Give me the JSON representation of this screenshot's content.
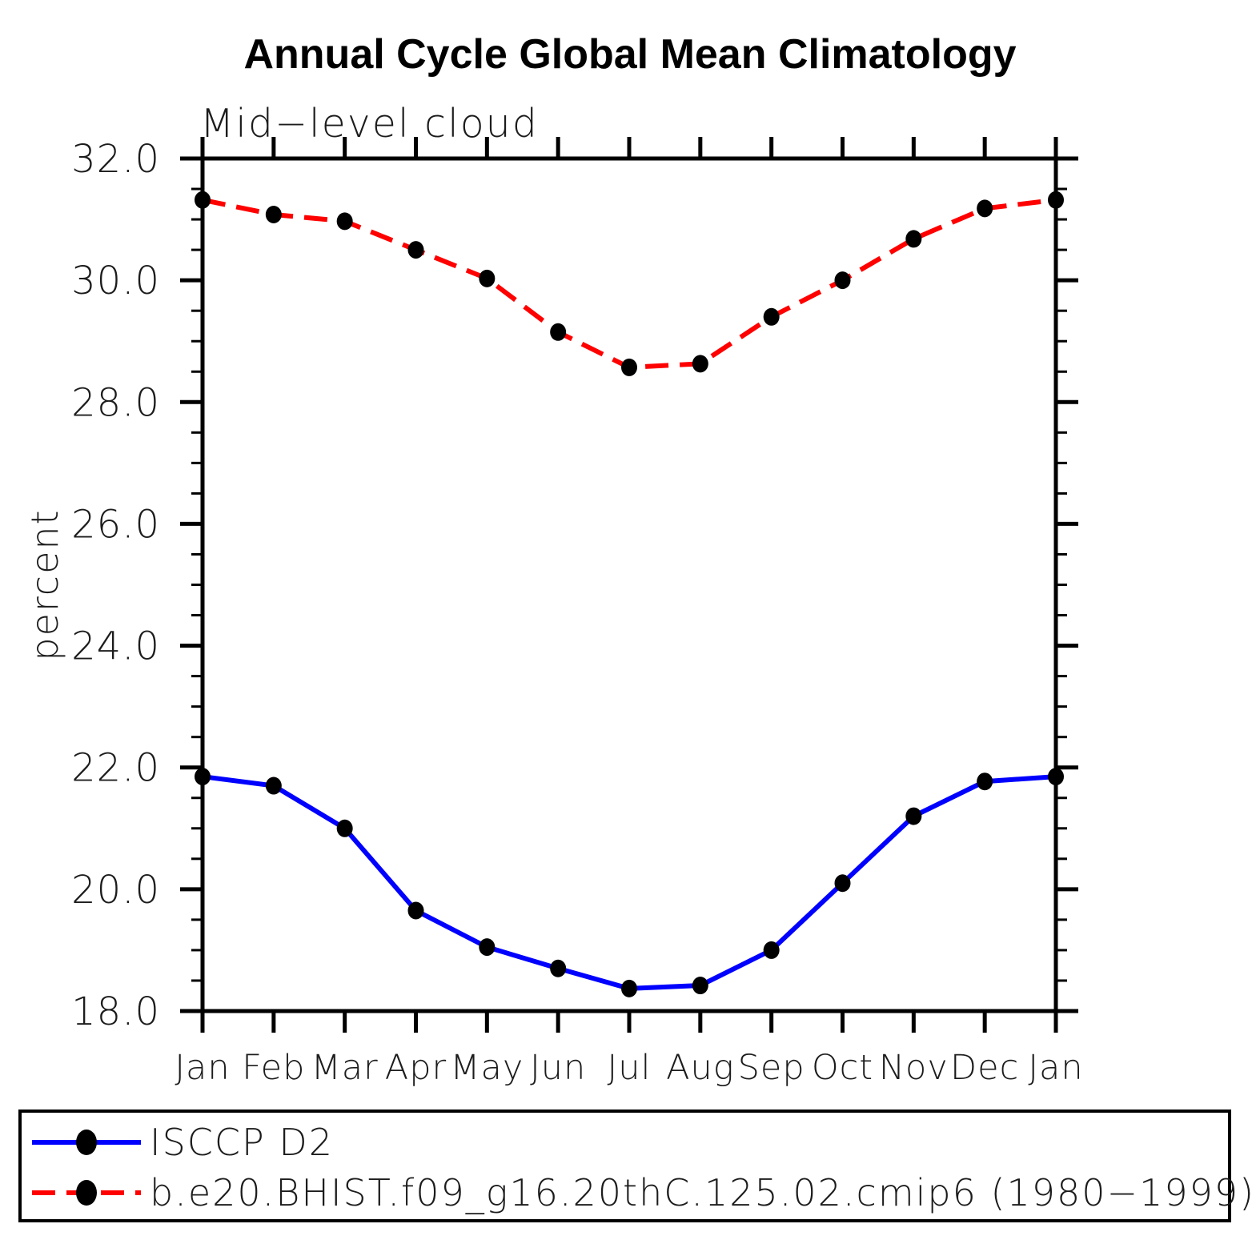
{
  "title": "Annual Cycle Global Mean Climatology",
  "subtitle": "Mid−level cloud",
  "y_axis": {
    "label": "percent",
    "tick_labels": [
      "18.0",
      "20.0",
      "22.0",
      "24.0",
      "26.0",
      "28.0",
      "30.0",
      "32.0"
    ]
  },
  "x_axis": {
    "tick_labels": [
      "Jan",
      "Feb",
      "Mar",
      "Apr",
      "May",
      "Jun",
      "Jul",
      "Aug",
      "Sep",
      "Oct",
      "Nov",
      "Dec",
      "Jan"
    ]
  },
  "legend": {
    "entries": [
      {
        "label": "ISCCP D2",
        "line": "solid blue",
        "marker": "black filled circle"
      },
      {
        "label": "b.e20.BHIST.f09_g16.20thC.125.02.cmip6 (1980−1999)",
        "line": "dashed red",
        "marker": "black filled circle"
      }
    ]
  },
  "colors": {
    "background": "#ffffff",
    "axis": "#000000",
    "text": "#1c1c1c",
    "series_blue": "#0000ff",
    "series_red": "#ff0000",
    "marker": "#000000"
  },
  "chart_data": {
    "type": "line",
    "title": "Annual Cycle Global Mean Climatology",
    "subtitle": "Mid−level cloud",
    "xlabel": "",
    "ylabel": "percent",
    "categories": [
      "Jan",
      "Feb",
      "Mar",
      "Apr",
      "May",
      "Jun",
      "Jul",
      "Aug",
      "Sep",
      "Oct",
      "Nov",
      "Dec",
      "Jan"
    ],
    "ylim": [
      18.0,
      32.0
    ],
    "ytick_major_interval": 2.0,
    "ytick_minor_interval": 0.5,
    "grid": false,
    "legend_position": "framed box below plot, bottom-left",
    "series": [
      {
        "name": "ISCCP D2",
        "color": "#0000ff",
        "line_style": "solid",
        "marker": "filled-circle",
        "marker_color": "#000000",
        "values": [
          21.85,
          21.7,
          21.0,
          19.65,
          19.05,
          18.7,
          18.37,
          18.42,
          19.0,
          20.1,
          21.2,
          21.77,
          21.85
        ]
      },
      {
        "name": "b.e20.BHIST.f09_g16.20thC.125.02.cmip6 (1980−1999)",
        "color": "#ff0000",
        "line_style": "dashed",
        "marker": "filled-circle",
        "marker_color": "#000000",
        "values": [
          31.32,
          31.08,
          30.97,
          30.5,
          30.03,
          29.15,
          28.57,
          28.63,
          29.4,
          30.0,
          30.68,
          31.18,
          31.32
        ]
      }
    ]
  }
}
